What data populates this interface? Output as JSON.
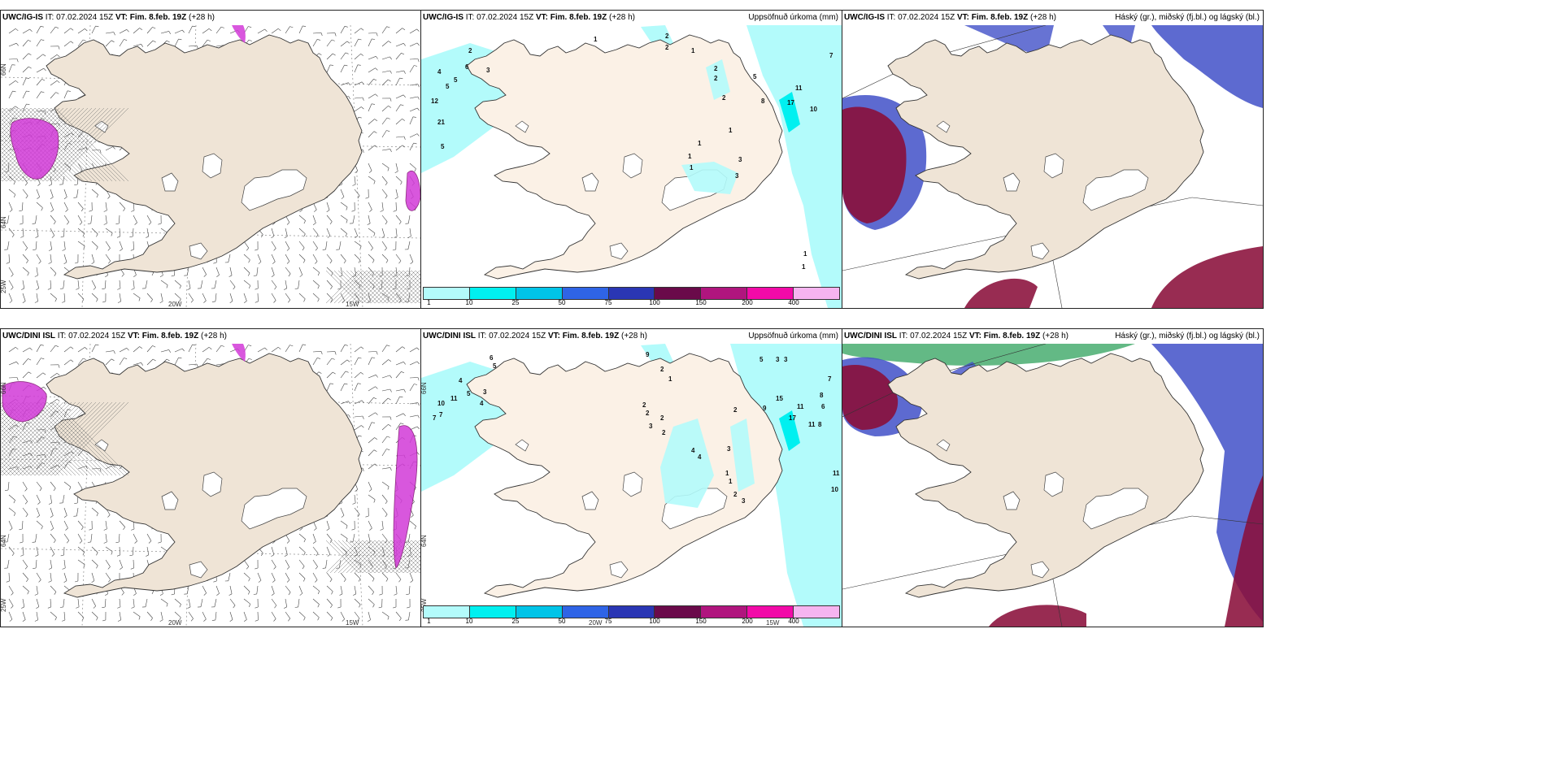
{
  "panels": [
    {
      "model": "UWC/IG-IS",
      "it_label": "IT: 07.02.2024 15Z",
      "vt_label": "VT: Fim. 8.feb. 19Z",
      "lead": "(+28 h)",
      "right_title": ""
    },
    {
      "model": "UWC/IG-IS",
      "it_label": "IT: 07.02.2024 15Z",
      "vt_label": "VT: Fim. 8.feb. 19Z",
      "lead": "(+28 h)",
      "right_title": "Uppsöfnuð úrkoma (mm)"
    },
    {
      "model": "UWC/IG-IS",
      "it_label": "IT: 07.02.2024 15Z",
      "vt_label": "VT: Fim. 8.feb. 19Z",
      "lead": "(+28 h)",
      "right_title": "Háský (gr.), miðský (fj.bl.) og lágský (bl.)"
    },
    {
      "model": "UWC/DINI ISL",
      "it_label": "IT: 07.02.2024 15Z",
      "vt_label": "VT: Fim. 8.feb. 19Z",
      "lead": "(+28 h)",
      "right_title": ""
    },
    {
      "model": "UWC/DINI ISL",
      "it_label": "IT: 07.02.2024 15Z",
      "vt_label": "VT: Fim. 8.feb. 19Z",
      "lead": "(+28 h)",
      "right_title": "Uppsöfnuð úrkoma (mm)"
    },
    {
      "model": "UWC/DINI ISL",
      "it_label": "IT: 07.02.2024 15Z",
      "vt_label": "VT: Fim. 8.feb. 19Z",
      "lead": "(+28 h)",
      "right_title": "Háský (gr.), miðský (fj.bl.) og lágský (bl.)"
    }
  ],
  "axis_labels": {
    "lat66": "66N",
    "lat64": "64N",
    "lon20": "20W",
    "lon15": "15W",
    "lon25": "25W"
  },
  "precip_legend": {
    "ticks": [
      "1",
      "10",
      "25",
      "50",
      "75",
      "100",
      "150",
      "200",
      "400"
    ],
    "colors": [
      "#b3fbfb",
      "#00f0f0",
      "#00c4e8",
      "#2f64e6",
      "#2a36b4",
      "#6a0a4a",
      "#b0157e",
      "#f20aa8",
      "#f6b4f0"
    ]
  },
  "precip_values_top": [
    "2",
    "4",
    "5",
    "6",
    "3",
    "5",
    "12",
    "21",
    "5",
    "1",
    "2",
    "2",
    "1",
    "2",
    "2",
    "2",
    "5",
    "8",
    "7",
    "11",
    "17",
    "10",
    "1",
    "1",
    "1",
    "1",
    "3",
    "3",
    "1",
    "1"
  ],
  "precip_values_bottom": [
    "6",
    "5",
    "4",
    "5",
    "11",
    "10",
    "7",
    "7",
    "3",
    "4",
    "9",
    "2",
    "1",
    "2",
    "2",
    "2",
    "3",
    "2",
    "4",
    "4",
    "3",
    "1",
    "1",
    "2",
    "3",
    "2",
    "5",
    "3",
    "3",
    "9",
    "17",
    "15",
    "11",
    "11",
    "8",
    "6",
    "8",
    "7",
    "10",
    "11"
  ],
  "colors": {
    "land": "#efe4d6",
    "land_precip": "#fbf1e6",
    "precip_light": "#b3fbfb",
    "wind_pink": "#d23ad8",
    "cloud_high": "#3ca866",
    "cloud_mid": "#4150c8",
    "cloud_low": "#8a0f3a"
  }
}
